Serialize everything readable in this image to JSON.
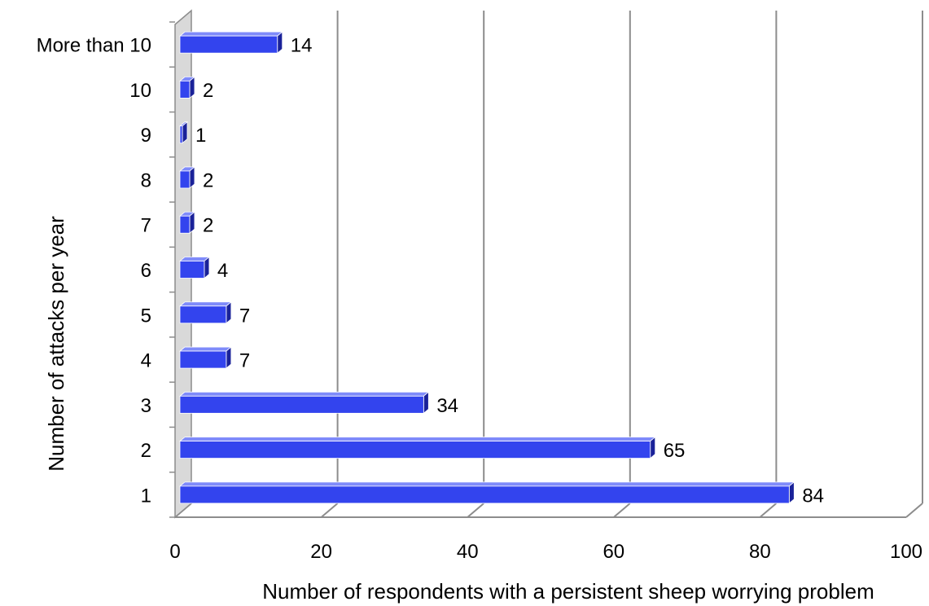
{
  "chart_data": {
    "type": "bar",
    "orientation": "horizontal",
    "three_d": true,
    "categories": [
      "1",
      "2",
      "3",
      "4",
      "5",
      "6",
      "7",
      "8",
      "9",
      "10",
      "More than 10"
    ],
    "values": [
      84,
      65,
      34,
      7,
      7,
      4,
      2,
      2,
      1,
      2,
      14
    ],
    "data_labels": [
      "84",
      "65",
      "34",
      "7",
      "7",
      "4",
      "2",
      "2",
      "1",
      "2",
      "14"
    ],
    "xlabel": "Number of respondents with a persistent sheep worrying problem",
    "ylabel": "Number of attacks per year",
    "xlim": [
      0,
      100
    ],
    "x_ticks": [
      0,
      20,
      40,
      60,
      80,
      100
    ],
    "x_tick_labels": [
      "0",
      "20",
      "40",
      "60",
      "80",
      "100"
    ],
    "grid": "vertical",
    "legend": "none",
    "colors": {
      "bar": "#3344EE",
      "bar_top": "#7F8BFA",
      "bar_side": "#1A2299",
      "grid": "#8C8C8C",
      "wall": "#D9D9D9"
    }
  }
}
